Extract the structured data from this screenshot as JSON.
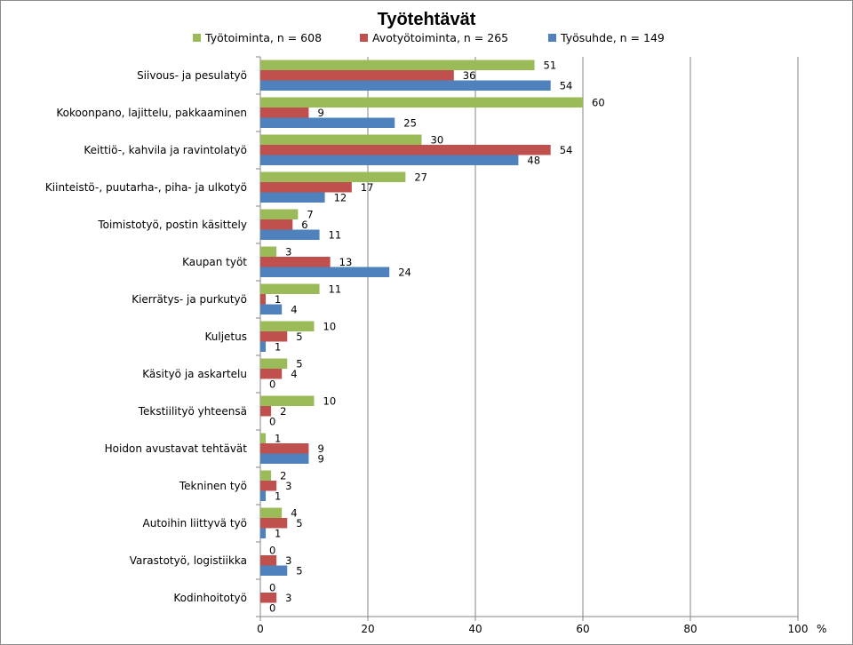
{
  "chart_data": {
    "type": "bar",
    "orientation": "horizontal",
    "title": "Työtehtävät",
    "unit_label": "%",
    "xlim": [
      0,
      100
    ],
    "xticks": [
      0,
      20,
      40,
      60,
      80,
      100
    ],
    "grid": true,
    "legend_position": "top",
    "categories": [
      "Siivous- ja pesulatyö",
      "Kokoonpano, lajittelu, pakkaaminen",
      "Keittiö-, kahvila ja ravintolatyö",
      "Kiinteistö-, puutarha-, piha- ja ulkotyö",
      "Toimistotyö, postin käsittely",
      "Kaupan työt",
      "Kierrätys- ja purkutyö",
      "Kuljetus",
      "Käsityö ja askartelu",
      "Tekstiilityö yhteensä",
      "Hoidon avustavat tehtävät",
      "Tekninen työ",
      "Autoihin liittyvä työ",
      "Varastotyö, logistiikka",
      "Kodinhoitotyö"
    ],
    "series": [
      {
        "name": "Työtoiminta, n = 608",
        "color": "#9bbb59",
        "values": [
          51,
          60,
          30,
          27,
          7,
          3,
          11,
          10,
          5,
          10,
          1,
          2,
          4,
          0,
          0
        ]
      },
      {
        "name": "Avotyötoiminta, n = 265",
        "color": "#c0504d",
        "values": [
          36,
          9,
          54,
          17,
          6,
          13,
          1,
          5,
          4,
          2,
          9,
          3,
          5,
          3,
          3
        ]
      },
      {
        "name": "Työsuhde, n = 149",
        "color": "#4f81bd",
        "values": [
          54,
          25,
          48,
          12,
          11,
          24,
          4,
          1,
          0,
          0,
          9,
          1,
          1,
          5,
          0
        ]
      }
    ]
  }
}
